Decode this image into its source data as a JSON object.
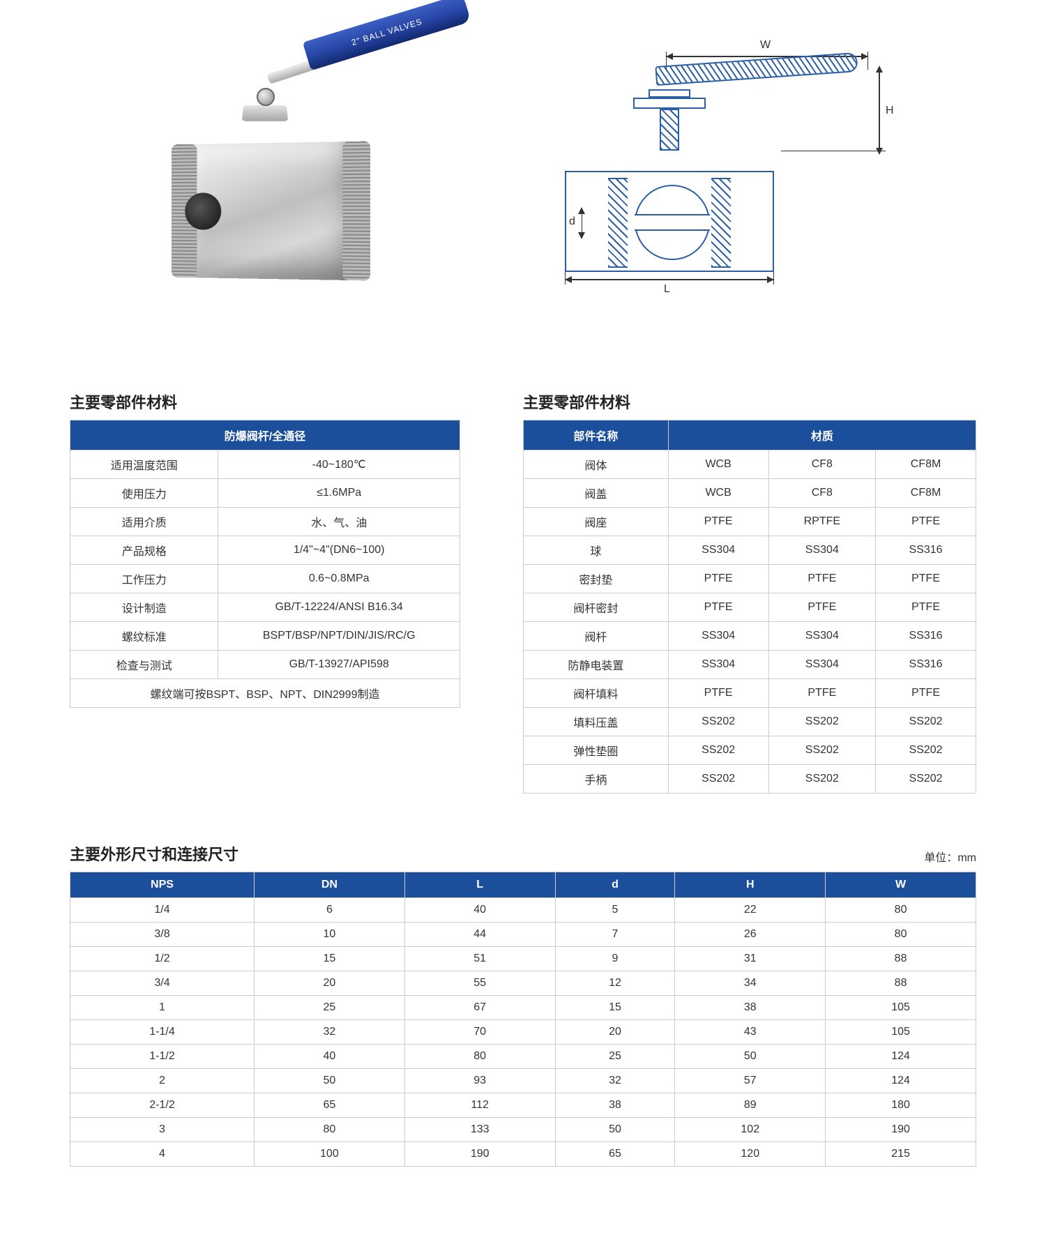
{
  "handle_text": "2\" BALL VALVES",
  "drawing": {
    "W": "W",
    "H": "H",
    "L": "L",
    "d": "d"
  },
  "specs": {
    "title": "主要零部件材料",
    "header": "防爆阀杆/全通径",
    "rows": [
      {
        "label": "适用温度范围",
        "value": "-40~180℃"
      },
      {
        "label": "使用压力",
        "value": "≤1.6MPa"
      },
      {
        "label": "适用介质",
        "value": "水、气、油"
      },
      {
        "label": "产品规格",
        "value": "1/4\"~4\"(DN6~100)"
      },
      {
        "label": "工作压力",
        "value": "0.6~0.8MPa"
      },
      {
        "label": "设计制造",
        "value": "GB/T-12224/ANSI B16.34"
      },
      {
        "label": "螺纹标准",
        "value": "BSPT/BSP/NPT/DIN/JIS/RC/G"
      },
      {
        "label": "检查与测试",
        "value": "GB/T-13927/API598"
      }
    ],
    "note": "螺纹端可按BSPT、BSP、NPT、DIN2999制造"
  },
  "materials": {
    "title": "主要零部件材料",
    "header_part": "部件名称",
    "header_mat": "材质",
    "rows": [
      {
        "part": "阀体",
        "m1": "WCB",
        "m2": "CF8",
        "m3": "CF8M"
      },
      {
        "part": "阀盖",
        "m1": "WCB",
        "m2": "CF8",
        "m3": "CF8M"
      },
      {
        "part": "阀座",
        "m1": "PTFE",
        "m2": "RPTFE",
        "m3": "PTFE"
      },
      {
        "part": "球",
        "m1": "SS304",
        "m2": "SS304",
        "m3": "SS316"
      },
      {
        "part": "密封垫",
        "m1": "PTFE",
        "m2": "PTFE",
        "m3": "PTFE"
      },
      {
        "part": "阀杆密封",
        "m1": "PTFE",
        "m2": "PTFE",
        "m3": "PTFE"
      },
      {
        "part": "阀杆",
        "m1": "SS304",
        "m2": "SS304",
        "m3": "SS316"
      },
      {
        "part": "防静电装置",
        "m1": "SS304",
        "m2": "SS304",
        "m3": "SS316"
      },
      {
        "part": "阀杆填料",
        "m1": "PTFE",
        "m2": "PTFE",
        "m3": "PTFE"
      },
      {
        "part": "填料压盖",
        "m1": "SS202",
        "m2": "SS202",
        "m3": "SS202"
      },
      {
        "part": "弹性垫圈",
        "m1": "SS202",
        "m2": "SS202",
        "m3": "SS202"
      },
      {
        "part": "手柄",
        "m1": "SS202",
        "m2": "SS202",
        "m3": "SS202"
      }
    ]
  },
  "dimensions": {
    "title": "主要外形尺寸和连接尺寸",
    "unit": "单位：mm",
    "columns": [
      "NPS",
      "DN",
      "L",
      "d",
      "H",
      "W"
    ],
    "rows": [
      [
        "1/4",
        "6",
        "40",
        "5",
        "22",
        "80"
      ],
      [
        "3/8",
        "10",
        "44",
        "7",
        "26",
        "80"
      ],
      [
        "1/2",
        "15",
        "51",
        "9",
        "31",
        "88"
      ],
      [
        "3/4",
        "20",
        "55",
        "12",
        "34",
        "88"
      ],
      [
        "1",
        "25",
        "67",
        "15",
        "38",
        "105"
      ],
      [
        "1-1/4",
        "32",
        "70",
        "20",
        "43",
        "105"
      ],
      [
        "1-1/2",
        "40",
        "80",
        "25",
        "50",
        "124"
      ],
      [
        "2",
        "50",
        "93",
        "32",
        "57",
        "124"
      ],
      [
        "2-1/2",
        "65",
        "112",
        "38",
        "89",
        "180"
      ],
      [
        "3",
        "80",
        "133",
        "50",
        "102",
        "190"
      ],
      [
        "4",
        "100",
        "190",
        "65",
        "120",
        "215"
      ]
    ]
  },
  "colors": {
    "header_bg": "#1b4f9b",
    "header_fg": "#ffffff",
    "border": "#cccccc",
    "drawing_stroke": "#2a5fa8"
  }
}
